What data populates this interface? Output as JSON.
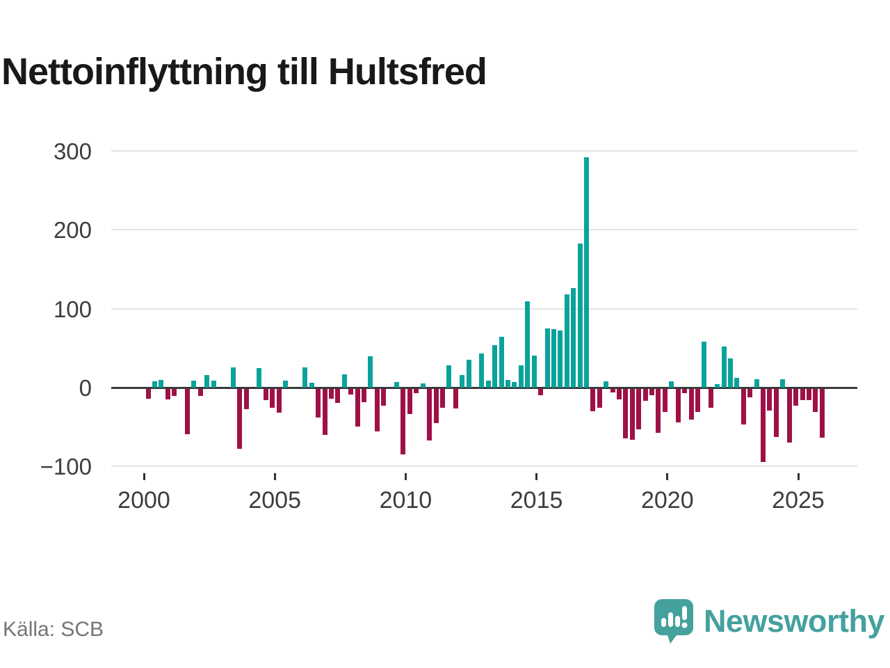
{
  "title": "Nettoinflyttning till Hultsfred",
  "source_note": "Källa: SCB",
  "brand": {
    "name": "Newsworthy",
    "logo_icon": "speech-bubble-bar-chart-icon"
  },
  "colors": {
    "positive_bar": "#0aa39b",
    "negative_bar": "#9e1147",
    "grid": "#e3e3e3",
    "zero_axis": "#3a3a3a",
    "axis_text": "#3d3d3d",
    "title_text": "#191919",
    "source_text": "#757575",
    "brand_teal": "#44a19e"
  },
  "chart_data": {
    "type": "bar",
    "title": "Nettoinflyttning till Hultsfred",
    "xlabel": "",
    "ylabel": "",
    "ylim": [
      -100,
      300
    ],
    "grid": true,
    "legend": "none",
    "y_ticks": [
      300,
      200,
      100,
      0,
      -100
    ],
    "y_tick_labels": [
      "300",
      "200",
      "100",
      "0",
      "−100"
    ],
    "x_ticks": [
      2000,
      2005,
      2010,
      2015,
      2020,
      2025
    ],
    "x_tick_labels": [
      "2000",
      "2005",
      "2010",
      "2015",
      "2020",
      "2025"
    ],
    "series_unit": "quarterly net migration (persons)",
    "years": [
      {
        "year": 2000,
        "q": [
          -12,
          8,
          10,
          -13
        ]
      },
      {
        "year": 2001,
        "q": [
          -9,
          0,
          -57,
          9
        ]
      },
      {
        "year": 2002,
        "q": [
          -9,
          16,
          9,
          0
        ]
      },
      {
        "year": 2003,
        "q": [
          0,
          26,
          -76,
          -26
        ]
      },
      {
        "year": 2004,
        "q": [
          0,
          25,
          -14,
          -24
        ]
      },
      {
        "year": 2005,
        "q": [
          -30,
          9,
          0,
          0
        ]
      },
      {
        "year": 2006,
        "q": [
          26,
          6,
          -36,
          -58
        ]
      },
      {
        "year": 2007,
        "q": [
          -12,
          -18,
          17,
          -7
        ]
      },
      {
        "year": 2008,
        "q": [
          -48,
          -17,
          40,
          -54
        ]
      },
      {
        "year": 2009,
        "q": [
          -21,
          0,
          7,
          -83
        ]
      },
      {
        "year": 2010,
        "q": [
          -32,
          -5,
          5,
          -65
        ]
      },
      {
        "year": 2011,
        "q": [
          -43,
          -24,
          28,
          -25
        ]
      },
      {
        "year": 2012,
        "q": [
          16,
          35,
          0,
          43
        ]
      },
      {
        "year": 2013,
        "q": [
          9,
          54,
          64,
          10
        ]
      },
      {
        "year": 2014,
        "q": [
          7,
          28,
          109,
          41
        ]
      },
      {
        "year": 2015,
        "q": [
          -8,
          75,
          74,
          72
        ]
      },
      {
        "year": 2016,
        "q": [
          118,
          126,
          183,
          292
        ]
      },
      {
        "year": 2017,
        "q": [
          -28,
          -24,
          8,
          -4
        ]
      },
      {
        "year": 2018,
        "q": [
          -13,
          -63,
          -64,
          -51
        ]
      },
      {
        "year": 2019,
        "q": [
          -15,
          -8,
          -56,
          -29
        ]
      },
      {
        "year": 2020,
        "q": [
          8,
          -42,
          -5,
          -39
        ]
      },
      {
        "year": 2021,
        "q": [
          -29,
          58,
          -24,
          4
        ]
      },
      {
        "year": 2022,
        "q": [
          52,
          37,
          12,
          -45
        ]
      },
      {
        "year": 2023,
        "q": [
          -11,
          11,
          -93,
          -27
        ]
      },
      {
        "year": 2024,
        "q": [
          -61,
          11,
          -68,
          -21
        ]
      },
      {
        "year": 2025,
        "q": [
          -14,
          -14,
          -29,
          -62
        ]
      }
    ]
  }
}
